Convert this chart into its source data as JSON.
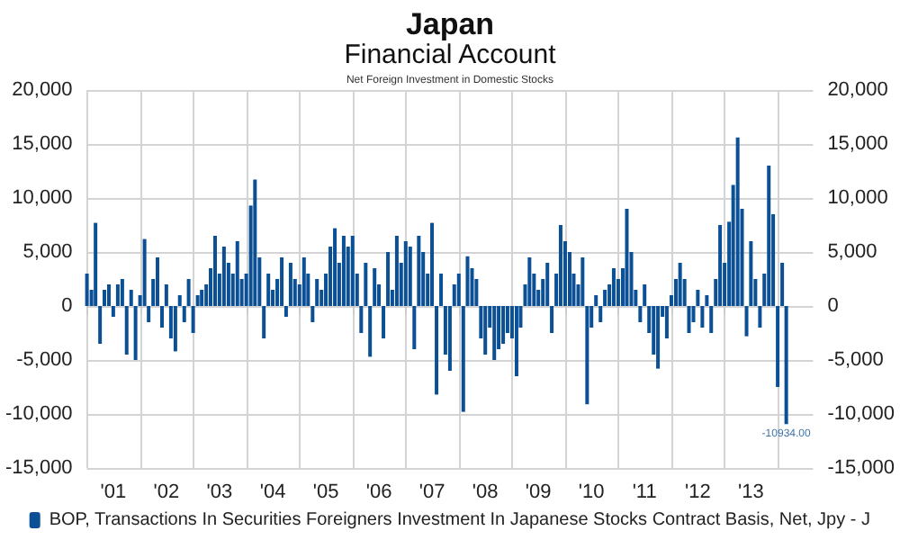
{
  "chart_data": {
    "type": "bar",
    "title": "Japan",
    "subtitle": "Financial Account",
    "annotations": [
      "Net Foreign Investment in Domestic Stocks",
      {
        "text": "-10934.00",
        "x": "2014-03",
        "y": -10934
      }
    ],
    "x": [
      "2001-01",
      "2001-02",
      "2001-03",
      "2001-04",
      "2001-05",
      "2001-06",
      "2001-07",
      "2001-08",
      "2001-09",
      "2001-10",
      "2001-11",
      "2001-12",
      "2002-01",
      "2002-02",
      "2002-03",
      "2002-04",
      "2002-05",
      "2002-06",
      "2002-07",
      "2002-08",
      "2002-09",
      "2002-10",
      "2002-11",
      "2002-12",
      "2003-01",
      "2003-02",
      "2003-03",
      "2003-04",
      "2003-05",
      "2003-06",
      "2003-07",
      "2003-08",
      "2003-09",
      "2003-10",
      "2003-11",
      "2003-12",
      "2004-01",
      "2004-02",
      "2004-03",
      "2004-04",
      "2004-05",
      "2004-06",
      "2004-07",
      "2004-08",
      "2004-09",
      "2004-10",
      "2004-11",
      "2004-12",
      "2005-01",
      "2005-02",
      "2005-03",
      "2005-04",
      "2005-05",
      "2005-06",
      "2005-07",
      "2005-08",
      "2005-09",
      "2005-10",
      "2005-11",
      "2005-12",
      "2006-01",
      "2006-02",
      "2006-03",
      "2006-04",
      "2006-05",
      "2006-06",
      "2006-07",
      "2006-08",
      "2006-09",
      "2006-10",
      "2006-11",
      "2006-12",
      "2007-01",
      "2007-02",
      "2007-03",
      "2007-04",
      "2007-05",
      "2007-06",
      "2007-07",
      "2007-08",
      "2007-09",
      "2007-10",
      "2007-11",
      "2007-12",
      "2008-01",
      "2008-02",
      "2008-03",
      "2008-04",
      "2008-05",
      "2008-06",
      "2008-07",
      "2008-08",
      "2008-09",
      "2008-10",
      "2008-11",
      "2008-12",
      "2009-01",
      "2009-02",
      "2009-03",
      "2009-04",
      "2009-05",
      "2009-06",
      "2009-07",
      "2009-08",
      "2009-09",
      "2009-10",
      "2009-11",
      "2009-12",
      "2010-01",
      "2010-02",
      "2010-03",
      "2010-04",
      "2010-05",
      "2010-06",
      "2010-07",
      "2010-08",
      "2010-09",
      "2010-10",
      "2010-11",
      "2010-12",
      "2011-01",
      "2011-02",
      "2011-03",
      "2011-04",
      "2011-05",
      "2011-06",
      "2011-07",
      "2011-08",
      "2011-09",
      "2011-10",
      "2011-11",
      "2011-12",
      "2012-01",
      "2012-02",
      "2012-03",
      "2012-04",
      "2012-05",
      "2012-06",
      "2012-07",
      "2012-08",
      "2012-09",
      "2012-10",
      "2012-11",
      "2012-12",
      "2013-01",
      "2013-02",
      "2013-03",
      "2013-04",
      "2013-05",
      "2013-06",
      "2013-07",
      "2013-08",
      "2013-09",
      "2013-10",
      "2013-11",
      "2013-12",
      "2014-01",
      "2014-02",
      "2014-03"
    ],
    "series": [
      {
        "name": "BOP, Transactions In Securities Foreigners Investment In Japanese Stocks Contract Basis, Net, Jpy - J",
        "color": "#0b4f94",
        "values": [
          3000,
          1500,
          7700,
          -3500,
          1500,
          2000,
          -1000,
          2000,
          2500,
          -4500,
          1500,
          -5000,
          1000,
          6200,
          -1500,
          2500,
          4500,
          -2000,
          2000,
          -3000,
          -4200,
          1000,
          -1500,
          2500,
          -2500,
          1000,
          1500,
          2000,
          3500,
          6500,
          3000,
          5500,
          4000,
          3000,
          6000,
          2500,
          3000,
          9300,
          11700,
          4500,
          -3000,
          3000,
          1500,
          2500,
          4500,
          -1000,
          4000,
          2500,
          2000,
          4500,
          3000,
          -1500,
          2500,
          1500,
          3000,
          5500,
          7200,
          4000,
          6500,
          5500,
          6500,
          3000,
          -2500,
          4000,
          -4700,
          3500,
          2000,
          -3000,
          5000,
          1500,
          6500,
          4000,
          6000,
          5500,
          -4000,
          6500,
          5000,
          3000,
          7700,
          -8200,
          3000,
          -4500,
          -6000,
          2000,
          3000,
          -9800,
          4600,
          3500,
          2500,
          -3000,
          -4500,
          -2000,
          -5000,
          -4000,
          -3500,
          -2500,
          -3000,
          -6500,
          -2000,
          2000,
          4500,
          3000,
          1500,
          2500,
          4000,
          -2500,
          3000,
          7500,
          6000,
          5000,
          3000,
          2000,
          4500,
          -9100,
          -2000,
          1000,
          -1500,
          1500,
          2000,
          3500,
          2500,
          3500,
          9000,
          5000,
          1500,
          -1500,
          2000,
          -2500,
          -4500,
          -5800,
          -1000,
          -3000,
          1000,
          2500,
          4000,
          2500,
          -2500,
          -1500,
          1500,
          -2000,
          1000,
          -2500,
          2500,
          7500,
          4000,
          7800,
          11200,
          15600,
          9000,
          -2800,
          6000,
          2500,
          -2000,
          3000,
          13000,
          8500,
          -7500,
          4000,
          -10934
        ]
      }
    ],
    "xlim": [
      "2001-01-01",
      "2014-09-01"
    ],
    "xticks": [
      {
        "value": "2001-01",
        "label": null
      },
      {
        "value": "2001-07",
        "label": "'01"
      },
      {
        "value": "2002-01",
        "label": null
      },
      {
        "value": "2002-07",
        "label": "'02"
      },
      {
        "value": "2003-01",
        "label": null
      },
      {
        "value": "2003-07",
        "label": "'03"
      },
      {
        "value": "2004-01",
        "label": null
      },
      {
        "value": "2004-07",
        "label": "'04"
      },
      {
        "value": "2005-01",
        "label": null
      },
      {
        "value": "2005-07",
        "label": "'05"
      },
      {
        "value": "2006-01",
        "label": null
      },
      {
        "value": "2006-07",
        "label": "'06"
      },
      {
        "value": "2007-01",
        "label": null
      },
      {
        "value": "2007-07",
        "label": "'07"
      },
      {
        "value": "2008-01",
        "label": null
      },
      {
        "value": "2008-07",
        "label": "'08"
      },
      {
        "value": "2009-01",
        "label": null
      },
      {
        "value": "2009-07",
        "label": "'09"
      },
      {
        "value": "2010-01",
        "label": null
      },
      {
        "value": "2010-07",
        "label": "'10"
      },
      {
        "value": "2011-01",
        "label": null
      },
      {
        "value": "2011-07",
        "label": "'11"
      },
      {
        "value": "2012-01",
        "label": null
      },
      {
        "value": "2012-07",
        "label": "'12"
      },
      {
        "value": "2013-01",
        "label": null
      },
      {
        "value": "2013-07",
        "label": "'13"
      },
      {
        "value": "2014-01",
        "label": null
      }
    ],
    "ylim": [
      -15000,
      20000
    ],
    "yticks": [
      {
        "value": -15000,
        "label": "-15,000"
      },
      {
        "value": -10000,
        "label": "-10,000"
      },
      {
        "value": -5000,
        "label": "-5,000"
      },
      0,
      {
        "value": 5000,
        "label": "5,000"
      },
      {
        "value": 10000,
        "label": "10,000"
      },
      {
        "value": 15000,
        "label": "15,000"
      },
      {
        "value": 20000,
        "label": "20,000"
      }
    ],
    "y2lim": [
      -15000,
      20000
    ],
    "y2ticks": [
      {
        "value": -15000,
        "label": "-15,000"
      },
      {
        "value": -10000,
        "label": "-10,000"
      },
      {
        "value": -5000,
        "label": "-5,000"
      },
      0,
      {
        "value": 5000,
        "label": "5,000"
      },
      {
        "value": 10000,
        "label": "10,000"
      },
      {
        "value": 15000,
        "label": "15,000"
      },
      {
        "value": 20000,
        "label": "20,000"
      }
    ],
    "grid": true,
    "legend": "bottom"
  }
}
